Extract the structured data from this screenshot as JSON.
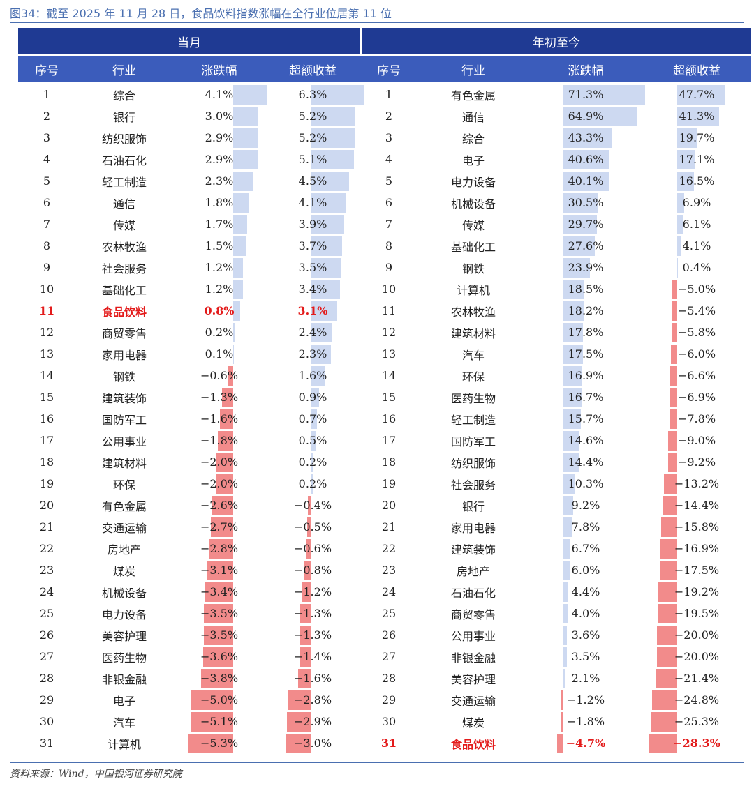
{
  "figure_title": "图34：截至 2025 年 11 月 28 日，食品饮料指数涨幅在全行业位居第 11 位",
  "source": "资料来源：Wind，中国银河证券研究院",
  "colors": {
    "header_dark": "#1f3a93",
    "header_light": "#3b5cbb",
    "positive_bar": "#cdd9f1",
    "negative_bar": "#f28b8b",
    "highlight": "#e31b1b"
  },
  "sections": {
    "monthly": "当月",
    "ytd": "年初至今"
  },
  "columns": [
    "序号",
    "行业",
    "涨跌幅",
    "超额收益",
    "序号",
    "行业",
    "涨跌幅",
    "超额收益"
  ],
  "monthly_rows": [
    {
      "rank": "1",
      "industry": "综合",
      "change": "4.1%",
      "excess": "6.3%",
      "change_val": 4.1,
      "excess_val": 6.3
    },
    {
      "rank": "2",
      "industry": "银行",
      "change": "3.0%",
      "excess": "5.2%",
      "change_val": 3.0,
      "excess_val": 5.2
    },
    {
      "rank": "3",
      "industry": "纺织服饰",
      "change": "2.9%",
      "excess": "5.2%",
      "change_val": 2.9,
      "excess_val": 5.2
    },
    {
      "rank": "4",
      "industry": "石油石化",
      "change": "2.9%",
      "excess": "5.1%",
      "change_val": 2.9,
      "excess_val": 5.1
    },
    {
      "rank": "5",
      "industry": "轻工制造",
      "change": "2.3%",
      "excess": "4.5%",
      "change_val": 2.3,
      "excess_val": 4.5
    },
    {
      "rank": "6",
      "industry": "通信",
      "change": "1.8%",
      "excess": "4.1%",
      "change_val": 1.8,
      "excess_val": 4.1
    },
    {
      "rank": "7",
      "industry": "传媒",
      "change": "1.7%",
      "excess": "3.9%",
      "change_val": 1.7,
      "excess_val": 3.9
    },
    {
      "rank": "8",
      "industry": "农林牧渔",
      "change": "1.5%",
      "excess": "3.7%",
      "change_val": 1.5,
      "excess_val": 3.7
    },
    {
      "rank": "9",
      "industry": "社会服务",
      "change": "1.2%",
      "excess": "3.5%",
      "change_val": 1.2,
      "excess_val": 3.5
    },
    {
      "rank": "10",
      "industry": "基础化工",
      "change": "1.2%",
      "excess": "3.4%",
      "change_val": 1.2,
      "excess_val": 3.4
    },
    {
      "rank": "11",
      "industry": "食品饮料",
      "change": "0.8%",
      "excess": "3.1%",
      "change_val": 0.8,
      "excess_val": 3.1,
      "highlight": true
    },
    {
      "rank": "12",
      "industry": "商贸零售",
      "change": "0.2%",
      "excess": "2.4%",
      "change_val": 0.2,
      "excess_val": 2.4
    },
    {
      "rank": "13",
      "industry": "家用电器",
      "change": "0.1%",
      "excess": "2.3%",
      "change_val": 0.1,
      "excess_val": 2.3
    },
    {
      "rank": "14",
      "industry": "钢铁",
      "change": "−0.6%",
      "excess": "1.6%",
      "change_val": -0.6,
      "excess_val": 1.6
    },
    {
      "rank": "15",
      "industry": "建筑装饰",
      "change": "−1.3%",
      "excess": "0.9%",
      "change_val": -1.3,
      "excess_val": 0.9
    },
    {
      "rank": "16",
      "industry": "国防军工",
      "change": "−1.6%",
      "excess": "0.7%",
      "change_val": -1.6,
      "excess_val": 0.7
    },
    {
      "rank": "17",
      "industry": "公用事业",
      "change": "−1.8%",
      "excess": "0.5%",
      "change_val": -1.8,
      "excess_val": 0.5
    },
    {
      "rank": "18",
      "industry": "建筑材料",
      "change": "−2.0%",
      "excess": "0.2%",
      "change_val": -2.0,
      "excess_val": 0.2
    },
    {
      "rank": "19",
      "industry": "环保",
      "change": "−2.0%",
      "excess": "0.2%",
      "change_val": -2.0,
      "excess_val": 0.2
    },
    {
      "rank": "20",
      "industry": "有色金属",
      "change": "−2.6%",
      "excess": "−0.4%",
      "change_val": -2.6,
      "excess_val": -0.4
    },
    {
      "rank": "21",
      "industry": "交通运输",
      "change": "−2.7%",
      "excess": "−0.5%",
      "change_val": -2.7,
      "excess_val": -0.5
    },
    {
      "rank": "22",
      "industry": "房地产",
      "change": "−2.8%",
      "excess": "−0.6%",
      "change_val": -2.8,
      "excess_val": -0.6
    },
    {
      "rank": "23",
      "industry": "煤炭",
      "change": "−3.1%",
      "excess": "−0.8%",
      "change_val": -3.1,
      "excess_val": -0.8
    },
    {
      "rank": "24",
      "industry": "机械设备",
      "change": "−3.4%",
      "excess": "−1.2%",
      "change_val": -3.4,
      "excess_val": -1.2
    },
    {
      "rank": "25",
      "industry": "电力设备",
      "change": "−3.5%",
      "excess": "−1.3%",
      "change_val": -3.5,
      "excess_val": -1.3
    },
    {
      "rank": "26",
      "industry": "美容护理",
      "change": "−3.5%",
      "excess": "−1.3%",
      "change_val": -3.5,
      "excess_val": -1.3
    },
    {
      "rank": "27",
      "industry": "医药生物",
      "change": "−3.6%",
      "excess": "−1.4%",
      "change_val": -3.6,
      "excess_val": -1.4
    },
    {
      "rank": "28",
      "industry": "非银金融",
      "change": "−3.8%",
      "excess": "−1.6%",
      "change_val": -3.8,
      "excess_val": -1.6
    },
    {
      "rank": "29",
      "industry": "电子",
      "change": "−5.0%",
      "excess": "−2.8%",
      "change_val": -5.0,
      "excess_val": -2.8
    },
    {
      "rank": "30",
      "industry": "汽车",
      "change": "−5.1%",
      "excess": "−2.9%",
      "change_val": -5.1,
      "excess_val": -2.9
    },
    {
      "rank": "31",
      "industry": "计算机",
      "change": "−5.3%",
      "excess": "−3.0%",
      "change_val": -5.3,
      "excess_val": -3.0
    }
  ],
  "ytd_rows": [
    {
      "rank": "1",
      "industry": "有色金属",
      "change": "71.3%",
      "excess": "47.7%",
      "change_val": 71.3,
      "excess_val": 47.7
    },
    {
      "rank": "2",
      "industry": "通信",
      "change": "64.9%",
      "excess": "41.3%",
      "change_val": 64.9,
      "excess_val": 41.3
    },
    {
      "rank": "3",
      "industry": "综合",
      "change": "43.3%",
      "excess": "19.7%",
      "change_val": 43.3,
      "excess_val": 19.7
    },
    {
      "rank": "4",
      "industry": "电子",
      "change": "40.6%",
      "excess": "17.1%",
      "change_val": 40.6,
      "excess_val": 17.1
    },
    {
      "rank": "5",
      "industry": "电力设备",
      "change": "40.1%",
      "excess": "16.5%",
      "change_val": 40.1,
      "excess_val": 16.5
    },
    {
      "rank": "6",
      "industry": "机械设备",
      "change": "30.5%",
      "excess": "6.9%",
      "change_val": 30.5,
      "excess_val": 6.9
    },
    {
      "rank": "7",
      "industry": "传媒",
      "change": "29.7%",
      "excess": "6.1%",
      "change_val": 29.7,
      "excess_val": 6.1
    },
    {
      "rank": "8",
      "industry": "基础化工",
      "change": "27.6%",
      "excess": "4.1%",
      "change_val": 27.6,
      "excess_val": 4.1
    },
    {
      "rank": "9",
      "industry": "钢铁",
      "change": "23.9%",
      "excess": "0.4%",
      "change_val": 23.9,
      "excess_val": 0.4
    },
    {
      "rank": "10",
      "industry": "计算机",
      "change": "18.5%",
      "excess": "−5.0%",
      "change_val": 18.5,
      "excess_val": -5.0
    },
    {
      "rank": "11",
      "industry": "农林牧渔",
      "change": "18.2%",
      "excess": "−5.4%",
      "change_val": 18.2,
      "excess_val": -5.4
    },
    {
      "rank": "12",
      "industry": "建筑材料",
      "change": "17.8%",
      "excess": "−5.8%",
      "change_val": 17.8,
      "excess_val": -5.8
    },
    {
      "rank": "13",
      "industry": "汽车",
      "change": "17.5%",
      "excess": "−6.0%",
      "change_val": 17.5,
      "excess_val": -6.0
    },
    {
      "rank": "14",
      "industry": "环保",
      "change": "16.9%",
      "excess": "−6.6%",
      "change_val": 16.9,
      "excess_val": -6.6
    },
    {
      "rank": "15",
      "industry": "医药生物",
      "change": "16.7%",
      "excess": "−6.9%",
      "change_val": 16.7,
      "excess_val": -6.9
    },
    {
      "rank": "16",
      "industry": "轻工制造",
      "change": "15.7%",
      "excess": "−7.8%",
      "change_val": 15.7,
      "excess_val": -7.8
    },
    {
      "rank": "17",
      "industry": "国防军工",
      "change": "14.6%",
      "excess": "−9.0%",
      "change_val": 14.6,
      "excess_val": -9.0
    },
    {
      "rank": "18",
      "industry": "纺织服饰",
      "change": "14.4%",
      "excess": "−9.2%",
      "change_val": 14.4,
      "excess_val": -9.2
    },
    {
      "rank": "19",
      "industry": "社会服务",
      "change": "10.3%",
      "excess": "−13.2%",
      "change_val": 10.3,
      "excess_val": -13.2
    },
    {
      "rank": "20",
      "industry": "银行",
      "change": "9.2%",
      "excess": "−14.4%",
      "change_val": 9.2,
      "excess_val": -14.4
    },
    {
      "rank": "21",
      "industry": "家用电器",
      "change": "7.8%",
      "excess": "−15.8%",
      "change_val": 7.8,
      "excess_val": -15.8
    },
    {
      "rank": "22",
      "industry": "建筑装饰",
      "change": "6.7%",
      "excess": "−16.9%",
      "change_val": 6.7,
      "excess_val": -16.9
    },
    {
      "rank": "23",
      "industry": "房地产",
      "change": "6.0%",
      "excess": "−17.5%",
      "change_val": 6.0,
      "excess_val": -17.5
    },
    {
      "rank": "24",
      "industry": "石油石化",
      "change": "4.4%",
      "excess": "−19.2%",
      "change_val": 4.4,
      "excess_val": -19.2
    },
    {
      "rank": "25",
      "industry": "商贸零售",
      "change": "4.0%",
      "excess": "−19.5%",
      "change_val": 4.0,
      "excess_val": -19.5
    },
    {
      "rank": "26",
      "industry": "公用事业",
      "change": "3.6%",
      "excess": "−20.0%",
      "change_val": 3.6,
      "excess_val": -20.0
    },
    {
      "rank": "27",
      "industry": "非银金融",
      "change": "3.5%",
      "excess": "−20.0%",
      "change_val": 3.5,
      "excess_val": -20.0
    },
    {
      "rank": "28",
      "industry": "美容护理",
      "change": "2.1%",
      "excess": "−21.4%",
      "change_val": 2.1,
      "excess_val": -21.4
    },
    {
      "rank": "29",
      "industry": "交通运输",
      "change": "−1.2%",
      "excess": "−24.8%",
      "change_val": -1.2,
      "excess_val": -24.8
    },
    {
      "rank": "30",
      "industry": "煤炭",
      "change": "−1.8%",
      "excess": "−25.3%",
      "change_val": -1.8,
      "excess_val": -25.3
    },
    {
      "rank": "31",
      "industry": "食品饮料",
      "change": "−4.7%",
      "excess": "−28.3%",
      "change_val": -4.7,
      "excess_val": -28.3,
      "highlight": true
    }
  ]
}
